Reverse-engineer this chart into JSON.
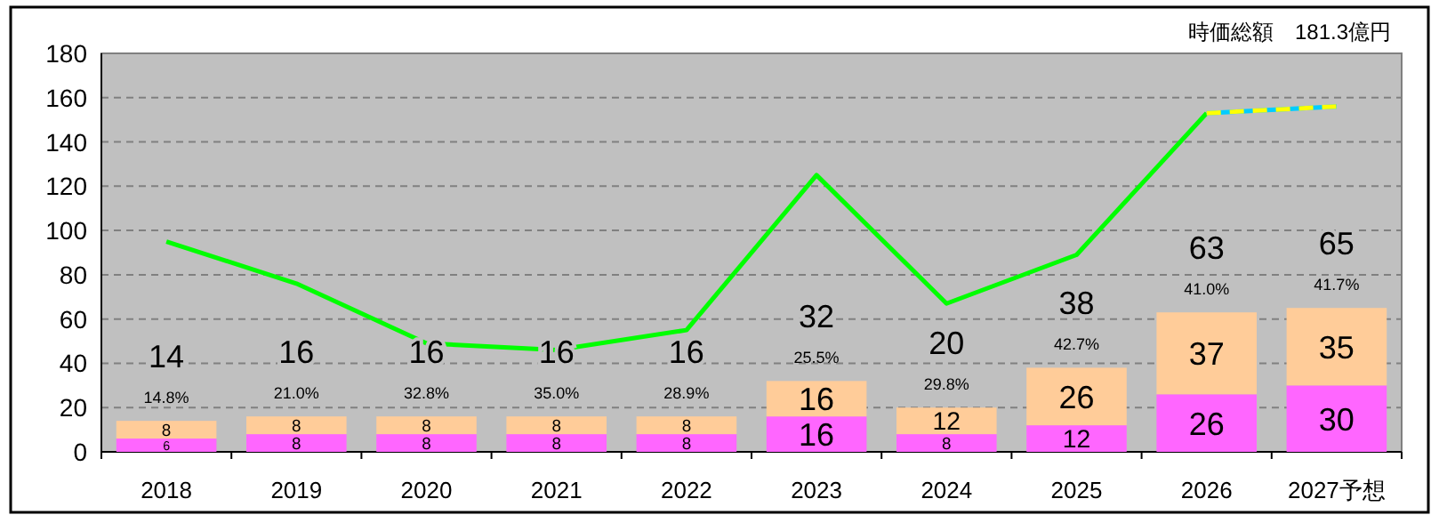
{
  "chart_data": {
    "type": "bar",
    "title": "時価総額　181.3億円",
    "categories": [
      "2018",
      "2019",
      "2020",
      "2021",
      "2022",
      "2023",
      "2024",
      "2025",
      "2026",
      "2027予想"
    ],
    "stacked": true,
    "ylim": [
      0,
      180
    ],
    "yticks": [
      0,
      20,
      40,
      60,
      80,
      100,
      120,
      140,
      160,
      180
    ],
    "grid": "y",
    "series": [
      {
        "color": "#ff66ff",
        "values": [
          6,
          8,
          8,
          8,
          8,
          16,
          8,
          12,
          26,
          30
        ],
        "value_labels": [
          "6",
          "8",
          "8",
          "8",
          "8",
          "16",
          "8",
          "12",
          "26",
          "30"
        ]
      },
      {
        "color": "#ffcc99",
        "values": [
          8,
          8,
          8,
          8,
          8,
          16,
          12,
          26,
          37,
          35
        ],
        "value_labels": [
          "8",
          "8",
          "8",
          "8",
          "8",
          "16",
          "12",
          "26",
          "37",
          "35"
        ]
      },
      {
        "type": "line",
        "color": "#00ff00",
        "values": [
          95,
          76,
          49,
          46,
          55,
          125,
          67,
          89,
          153,
          null
        ]
      },
      {
        "type": "line",
        "color": "#ffff00",
        "line_style": "dashed",
        "values": [
          null,
          null,
          null,
          null,
          null,
          null,
          null,
          null,
          153,
          156
        ]
      }
    ],
    "totals": [
      "14",
      "16",
      "16",
      "16",
      "16",
      "32",
      "20",
      "38",
      "63",
      "65"
    ],
    "annotations": [
      "14.8%",
      "21.0%",
      "32.8%",
      "35.0%",
      "28.9%",
      "25.5%",
      "29.8%",
      "42.7%",
      "41.0%",
      "41.7%"
    ]
  }
}
